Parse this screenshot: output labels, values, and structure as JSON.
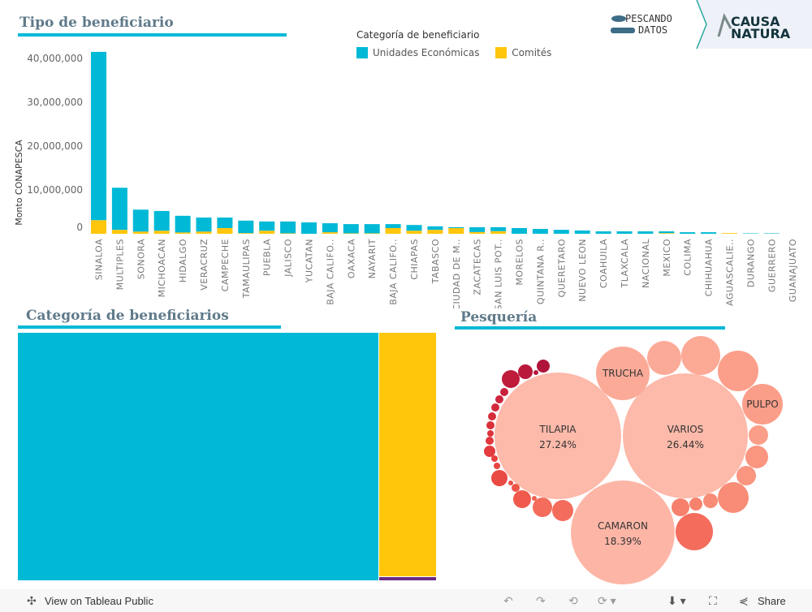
{
  "header": {
    "title_bar": "Tipo de beneficiario",
    "logo1": "PESCANDO DATOS",
    "logo2": "CAUSA NATURA"
  },
  "legend": {
    "title": "Categoría de beneficiario",
    "items": [
      {
        "label": "Unidades Económicas",
        "color": "#00b9d6"
      },
      {
        "label": "Comités",
        "color": "#ffc60b"
      }
    ]
  },
  "chart_data": [
    {
      "type": "bar",
      "stacked": true,
      "ylabel": "Monto CONAPESCA",
      "ylim": [
        0,
        42000000
      ],
      "yticks": [
        "0",
        "10,000,000",
        "20,000,000",
        "30,000,000",
        "40,000,000"
      ],
      "ytick_values": [
        0,
        10000000,
        20000000,
        30000000,
        40000000
      ],
      "categories": [
        "SINALOA",
        "MULTIPLES",
        "SONORA",
        "MICHOACAN",
        "HIDALGO",
        "VERACRUZ",
        "CAMPECHE",
        "TAMAULIPAS",
        "PUEBLA",
        "JALISCO",
        "YUCATAN",
        "BAJA CALIFO..",
        "OAXACA",
        "NAYARIT",
        "BAJA CALIFO..",
        "CHIAPAS",
        "TABASCO",
        "CIUDAD DE M..",
        "ZACATECAS",
        "SAN LUIS POT..",
        "MORELOS",
        "QUINTANA R..",
        "QUERETARO",
        "NUEVO LEON",
        "COAHUILA",
        "TLAXCALA",
        "NACIONAL",
        "MEXICO",
        "COLIMA",
        "CHIHUAHUA",
        "AGUASCALIE..",
        "DURANGO",
        "GUERRERO",
        "GUANAJUATO"
      ],
      "series": [
        {
          "name": "Comités",
          "color": "#ffc60b",
          "values": [
            3100000,
            900000,
            500000,
            700000,
            300000,
            500000,
            1300000,
            150000,
            700000,
            100000,
            0,
            350000,
            100000,
            100000,
            1300000,
            700000,
            900000,
            1300000,
            400000,
            600000,
            0,
            0,
            0,
            0,
            0,
            0,
            0,
            150000,
            0,
            0,
            150000,
            0,
            0,
            0
          ]
        },
        {
          "name": "Unidades Económicas",
          "color": "#00b9d6",
          "values": [
            38400000,
            9600000,
            5000000,
            4500000,
            3800000,
            3200000,
            2400000,
            2850000,
            2100000,
            2700000,
            2600000,
            2050000,
            2100000,
            2100000,
            900000,
            1300000,
            800000,
            200000,
            1100000,
            900000,
            1300000,
            1100000,
            900000,
            750000,
            550000,
            550000,
            550000,
            400000,
            350000,
            350000,
            0,
            100000,
            100000,
            0
          ]
        }
      ]
    },
    {
      "type": "treemap",
      "title": "Categoría  de  beneficiarios",
      "items": [
        {
          "name": "Unidades Económicas",
          "color": "#00b9d6",
          "share": 0.87
        },
        {
          "name": "Comités",
          "color": "#ffc60b",
          "share": 0.12
        },
        {
          "name": "",
          "color": "#6a2c86",
          "share": 0.002
        }
      ]
    },
    {
      "type": "bubble",
      "title": "Pesquería",
      "labeled": [
        {
          "name": "TILAPIA",
          "pct": "27.24%"
        },
        {
          "name": "VARIOS",
          "pct": "26.44%"
        },
        {
          "name": "CAMARON",
          "pct": "18.39%"
        },
        {
          "name": "TRUCHA",
          "pct": ""
        },
        {
          "name": "PULPO",
          "pct": ""
        }
      ]
    }
  ],
  "toolbar": {
    "view": "View on Tableau Public",
    "share": "Share"
  }
}
